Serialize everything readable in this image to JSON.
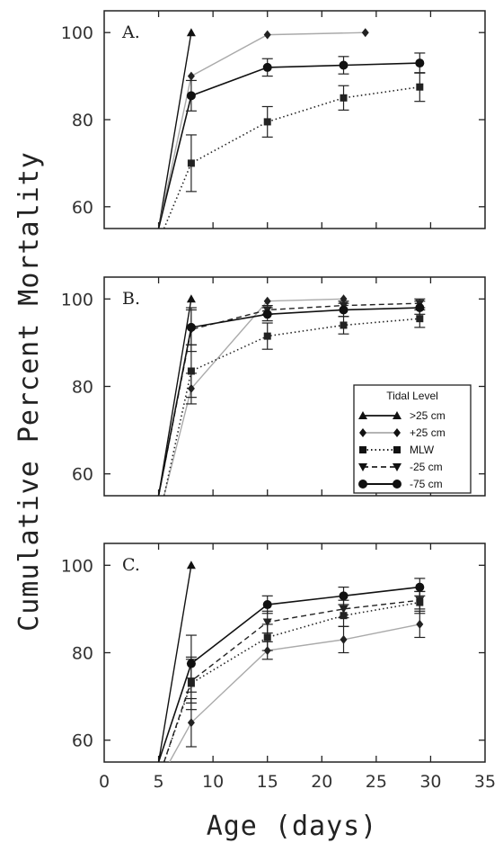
{
  "figure": {
    "ylabel": "Cumulative Percent Mortality",
    "xlabel": "Age (days)",
    "x_ticks": [
      0,
      5,
      10,
      15,
      20,
      25,
      30,
      35
    ],
    "y_ticks": [
      60,
      80,
      100
    ],
    "legend_title": "Tidal Level"
  },
  "series_styles": [
    {
      "id": "gt25",
      "name": ">25 cm",
      "marker": "triangle",
      "color": "#111111",
      "dash": "",
      "width": 1.4
    },
    {
      "id": "p25",
      "name": "+25 cm",
      "marker": "diamond",
      "color": "#aaaaaa",
      "dash": "",
      "width": 1.4
    },
    {
      "id": "mlw",
      "name": "MLW",
      "marker": "square",
      "color": "#222222",
      "dash": "1.5,3",
      "width": 1.6
    },
    {
      "id": "m25",
      "name": "-25 cm",
      "marker": "triangle-down",
      "color": "#222222",
      "dash": "6,4",
      "width": 1.4
    },
    {
      "id": "m75",
      "name": "-75 cm",
      "marker": "circle",
      "color": "#111111",
      "dash": "",
      "width": 1.6
    }
  ],
  "chart_data": [
    {
      "type": "line",
      "panel_label": "A.",
      "xlim": [
        0,
        35
      ],
      "ylim": [
        55,
        105
      ],
      "legend": false,
      "series": [
        {
          "name": ">25 cm",
          "x": [
            5,
            8
          ],
          "y": [
            55,
            100
          ],
          "err": [
            0,
            0
          ]
        },
        {
          "name": "+25 cm",
          "x": [
            5,
            8,
            15,
            24
          ],
          "y": [
            55,
            90,
            99.5,
            100
          ],
          "err": [
            0,
            0,
            0,
            0
          ]
        },
        {
          "name": "MLW",
          "x": [
            5.5,
            8,
            15,
            22,
            29
          ],
          "y": [
            55,
            70,
            79.5,
            85,
            87.5
          ],
          "err": [
            0,
            6.5,
            3.5,
            2.8,
            3.3
          ]
        },
        {
          "name": "-75 cm",
          "x": [
            5,
            8,
            15,
            22,
            29
          ],
          "y": [
            55,
            85.5,
            92,
            92.5,
            93
          ],
          "err": [
            0,
            3.5,
            2,
            2,
            2.3
          ]
        }
      ]
    },
    {
      "type": "line",
      "panel_label": "B.",
      "xlim": [
        0,
        35
      ],
      "ylim": [
        55,
        105
      ],
      "legend": true,
      "series": [
        {
          "name": ">25 cm",
          "x": [
            5,
            8
          ],
          "y": [
            55,
            100
          ],
          "err": [
            0,
            0
          ]
        },
        {
          "name": "+25 cm",
          "x": [
            5.5,
            8,
            15,
            22
          ],
          "y": [
            55,
            79.5,
            99.5,
            100
          ],
          "err": [
            0,
            3.5,
            0,
            0
          ]
        },
        {
          "name": "MLW",
          "x": [
            5.5,
            8,
            15,
            22,
            29
          ],
          "y": [
            55,
            83.5,
            91.5,
            94,
            95.5
          ],
          "err": [
            0,
            6,
            3,
            2,
            2
          ]
        },
        {
          "name": "-25 cm",
          "x": [
            5,
            8,
            15,
            22,
            29
          ],
          "y": [
            55,
            93,
            97.5,
            98.5,
            99
          ],
          "err": [
            0,
            5,
            1,
            1,
            1
          ]
        },
        {
          "name": "-75 cm",
          "x": [
            5,
            8,
            15,
            22,
            29
          ],
          "y": [
            55,
            93.5,
            96.5,
            97.5,
            98
          ],
          "err": [
            0,
            4,
            1.5,
            1.5,
            1.5
          ]
        }
      ]
    },
    {
      "type": "line",
      "panel_label": "C.",
      "xlim": [
        0,
        35
      ],
      "ylim": [
        55,
        105
      ],
      "legend": false,
      "series": [
        {
          "name": ">25 cm",
          "x": [
            5,
            8
          ],
          "y": [
            55,
            100
          ],
          "err": [
            0,
            0
          ]
        },
        {
          "name": "+25 cm",
          "x": [
            6,
            8,
            15,
            22,
            29
          ],
          "y": [
            55,
            64,
            80.5,
            83,
            86.5
          ],
          "err": [
            0,
            5.5,
            2,
            3,
            3
          ]
        },
        {
          "name": "MLW",
          "x": [
            5.5,
            8,
            15,
            22,
            29
          ],
          "y": [
            55,
            73,
            83.5,
            88.5,
            91.5
          ],
          "err": [
            0,
            6,
            3,
            2.5,
            2.5
          ]
        },
        {
          "name": "-25 cm",
          "x": [
            5.5,
            8,
            15,
            22,
            29
          ],
          "y": [
            55,
            73.5,
            87,
            90,
            92
          ],
          "err": [
            0,
            5,
            2.5,
            2,
            2
          ]
        },
        {
          "name": "-75 cm",
          "x": [
            5,
            8,
            15,
            22,
            29
          ],
          "y": [
            55,
            77.5,
            91,
            93,
            95
          ],
          "err": [
            0,
            6.5,
            2,
            2,
            2
          ]
        }
      ]
    }
  ]
}
